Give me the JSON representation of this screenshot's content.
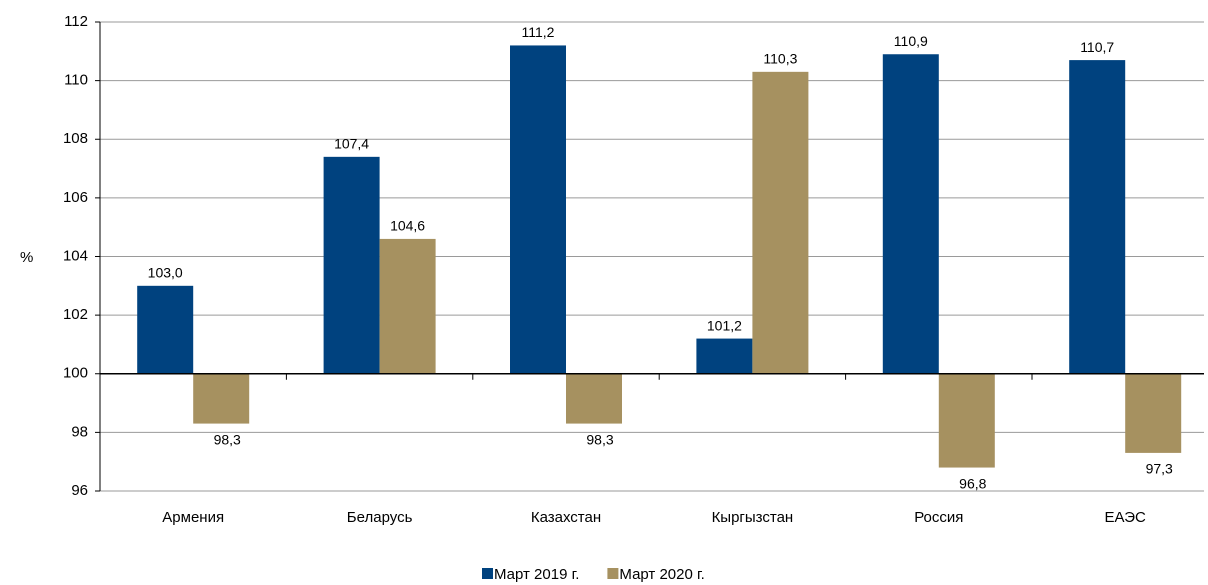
{
  "chart_data": {
    "type": "bar",
    "ylabel": "%",
    "categories": [
      "Армения",
      "Беларусь",
      "Казахстан",
      "Кыргызстан",
      "Россия",
      "ЕАЭС"
    ],
    "series": [
      {
        "name": "Март 2019 г.",
        "color": "#00427f",
        "values": [
          103.0,
          107.4,
          111.2,
          101.2,
          110.9,
          110.7
        ],
        "value_labels": [
          "103,0",
          "107,4",
          "111,2",
          "101,2",
          "110,9",
          "110,7"
        ]
      },
      {
        "name": "Март 2020 г.",
        "color": "#a69160",
        "values": [
          98.3,
          104.6,
          98.3,
          110.3,
          96.8,
          97.3
        ],
        "value_labels": [
          "98,3",
          "104,6",
          "98,3",
          "110,3",
          "96,8",
          "97,3"
        ]
      }
    ],
    "ylim": [
      96,
      112
    ],
    "yticks": [
      96,
      98,
      100,
      102,
      104,
      106,
      108,
      110,
      112
    ],
    "baseline": 100,
    "grid": true,
    "legend": "bottom"
  }
}
